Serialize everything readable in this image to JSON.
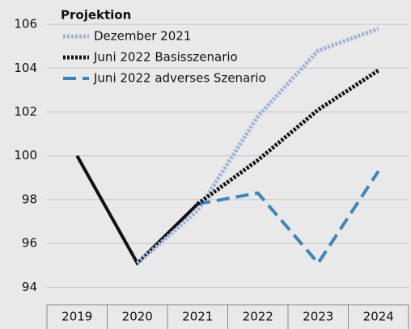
{
  "chart_data": {
    "type": "line",
    "legend_title": "Projektion",
    "categories": [
      "2019",
      "2020",
      "2021",
      "2022",
      "2023",
      "2024"
    ],
    "series": [
      {
        "color": "#111111",
        "style": "solid",
        "values": [
          100,
          95.1,
          97.8,
          null,
          null,
          null
        ]
      },
      {
        "name": "Dezember 2021",
        "color": "#9db4d8",
        "style": "dotted",
        "values": [
          null,
          95.1,
          97.5,
          101.8,
          104.8,
          105.8
        ]
      },
      {
        "name": "Juni 2022 Basisszenario",
        "color": "#111111",
        "style": "dotted",
        "values": [
          null,
          null,
          97.8,
          99.8,
          102.1,
          103.9
        ]
      },
      {
        "name": "Juni 2022 adverses Szenario",
        "color": "#3a87c0",
        "style": "dashed",
        "values": [
          null,
          null,
          97.8,
          98.3,
          95.1,
          99.3
        ]
      }
    ],
    "ylim": [
      93.2,
      107
    ],
    "yticks": [
      94,
      96,
      98,
      100,
      102,
      104,
      106
    ],
    "grid": true,
    "legend": "top-left"
  }
}
